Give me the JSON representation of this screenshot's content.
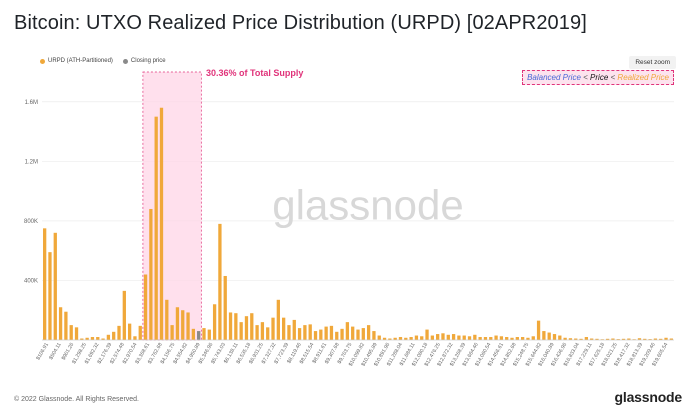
{
  "title": "Bitcoin: UTXO Realized Price Distribution (URPD) [02APR2019]",
  "reset_label": "Reset zoom",
  "legend": {
    "urpd": "URPD (ATH-Partitioned)",
    "closing": "Closing price"
  },
  "supply_label": "30.36% of Total Supply",
  "annotation": {
    "balanced": "Balanced Price",
    "lt1": "<",
    "price": "Price",
    "lt2": "<",
    "realized": "Realized Price"
  },
  "watermark": "glassnode",
  "footer": {
    "copyright": "© 2022 Glassnode. All Rights Reserved.",
    "logo": "glassnode"
  },
  "colors": {
    "bar": "#f0a83a",
    "closing_bar": "#8a8a8a",
    "highlight_fill": "#ffd6e7",
    "highlight_border": "#e0337a"
  },
  "chart_data": {
    "type": "bar",
    "ylim": [
      0,
      1800000
    ],
    "y_ticks": [
      "400K",
      "800K",
      "1.2M",
      "1.6M"
    ],
    "y_tick_values": [
      400000,
      800000,
      1200000,
      1600000
    ],
    "x_tick_labels": [
      "$106.91",
      "$504.11",
      "$901.26",
      "$1,298.25",
      "$1,692.32",
      "$2,176.39",
      "$2,574.48",
      "$2,970.54",
      "$3,368.61",
      "$3,762.68",
      "$4,156.75",
      "$4,554.82",
      "$4,950.89",
      "$5,346.96",
      "$5,743.03",
      "$6,138.11",
      "$6,535.18",
      "$6,931.25",
      "$7,327.32",
      "$7,723.39",
      "$8,119.46",
      "$8,515.54",
      "$8,911.61",
      "$9,307.68",
      "$9,703.75",
      "$10,099.82",
      "$10,495.89",
      "$10,891.96",
      "$11,288.04",
      "$11,684.11",
      "$12,080.18",
      "$12,476.25",
      "$12,872.32",
      "$13,268.39",
      "$13,664.46",
      "$14,060.54",
      "$14,456.61",
      "$14,852.68",
      "$15,248.75",
      "$15,644.82",
      "$16,040.89",
      "$16,436.96",
      "$16,833.04",
      "$17,229.11",
      "$17,625.18",
      "$18,021.25",
      "$18,417.32",
      "$18,813.39",
      "$19,209.46",
      "$19,605.54"
    ],
    "values": [
      750000,
      590000,
      720000,
      220000,
      190000,
      100000,
      85000,
      10000,
      15000,
      20000,
      20000,
      10000,
      35000,
      55000,
      95000,
      330000,
      110000,
      25000,
      95000,
      440000,
      880000,
      1500000,
      1560000,
      270000,
      100000,
      220000,
      200000,
      185000,
      75000,
      60000,
      80000,
      70000,
      240000,
      780000,
      430000,
      185000,
      180000,
      120000,
      160000,
      180000,
      100000,
      120000,
      85000,
      150000,
      270000,
      150000,
      100000,
      135000,
      80000,
      100000,
      105000,
      60000,
      70000,
      90000,
      95000,
      55000,
      75000,
      120000,
      90000,
      70000,
      80000,
      100000,
      60000,
      30000,
      15000,
      10000,
      15000,
      20000,
      15000,
      20000,
      30000,
      25000,
      70000,
      30000,
      40000,
      45000,
      35000,
      40000,
      30000,
      30000,
      25000,
      35000,
      20000,
      20000,
      20000,
      30000,
      25000,
      20000,
      15000,
      20000,
      20000,
      15000,
      25000,
      130000,
      60000,
      50000,
      40000,
      30000,
      15000,
      12000,
      10000,
      8000,
      20000,
      10000,
      8000,
      5000,
      8000,
      10000,
      6000,
      8000,
      10000,
      5000,
      12000,
      8000,
      6000,
      10000,
      8000,
      15000,
      10000
    ],
    "closing_index": 29,
    "highlight_range": [
      19,
      29
    ]
  }
}
